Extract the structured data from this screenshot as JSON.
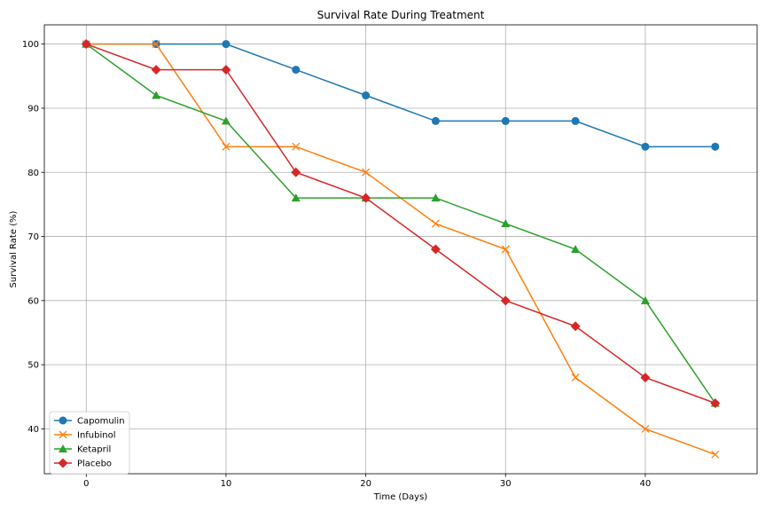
{
  "chart_data": {
    "type": "line",
    "title": "Survival Rate During Treatment",
    "xlabel": "Time (Days)",
    "ylabel": "Survival Rate (%)",
    "x": [
      0,
      5,
      10,
      15,
      20,
      25,
      30,
      35,
      40,
      45
    ],
    "xlim": [
      -3,
      48
    ],
    "ylim": [
      33,
      103
    ],
    "xticks": [
      0,
      10,
      20,
      30,
      40
    ],
    "yticks": [
      40,
      50,
      60,
      70,
      80,
      90,
      100
    ],
    "grid": true,
    "legend_position": "lower-left",
    "series": [
      {
        "name": "Capomulin",
        "color": "#1f77b4",
        "marker": "circle",
        "values": [
          100,
          100,
          100,
          96,
          92,
          88,
          88,
          88,
          84,
          84
        ]
      },
      {
        "name": "Infubinol",
        "color": "#ff7f0e",
        "marker": "x",
        "values": [
          100,
          100,
          84,
          84,
          80,
          72,
          68,
          48,
          40,
          36
        ]
      },
      {
        "name": "Ketapril",
        "color": "#2ca02c",
        "marker": "triangle",
        "values": [
          100,
          92,
          88,
          76,
          76,
          76,
          72,
          68,
          60,
          44
        ]
      },
      {
        "name": "Placebo",
        "color": "#d62728",
        "marker": "diamond",
        "values": [
          100,
          96,
          96,
          80,
          76,
          68,
          60,
          56,
          48,
          44
        ]
      }
    ]
  }
}
